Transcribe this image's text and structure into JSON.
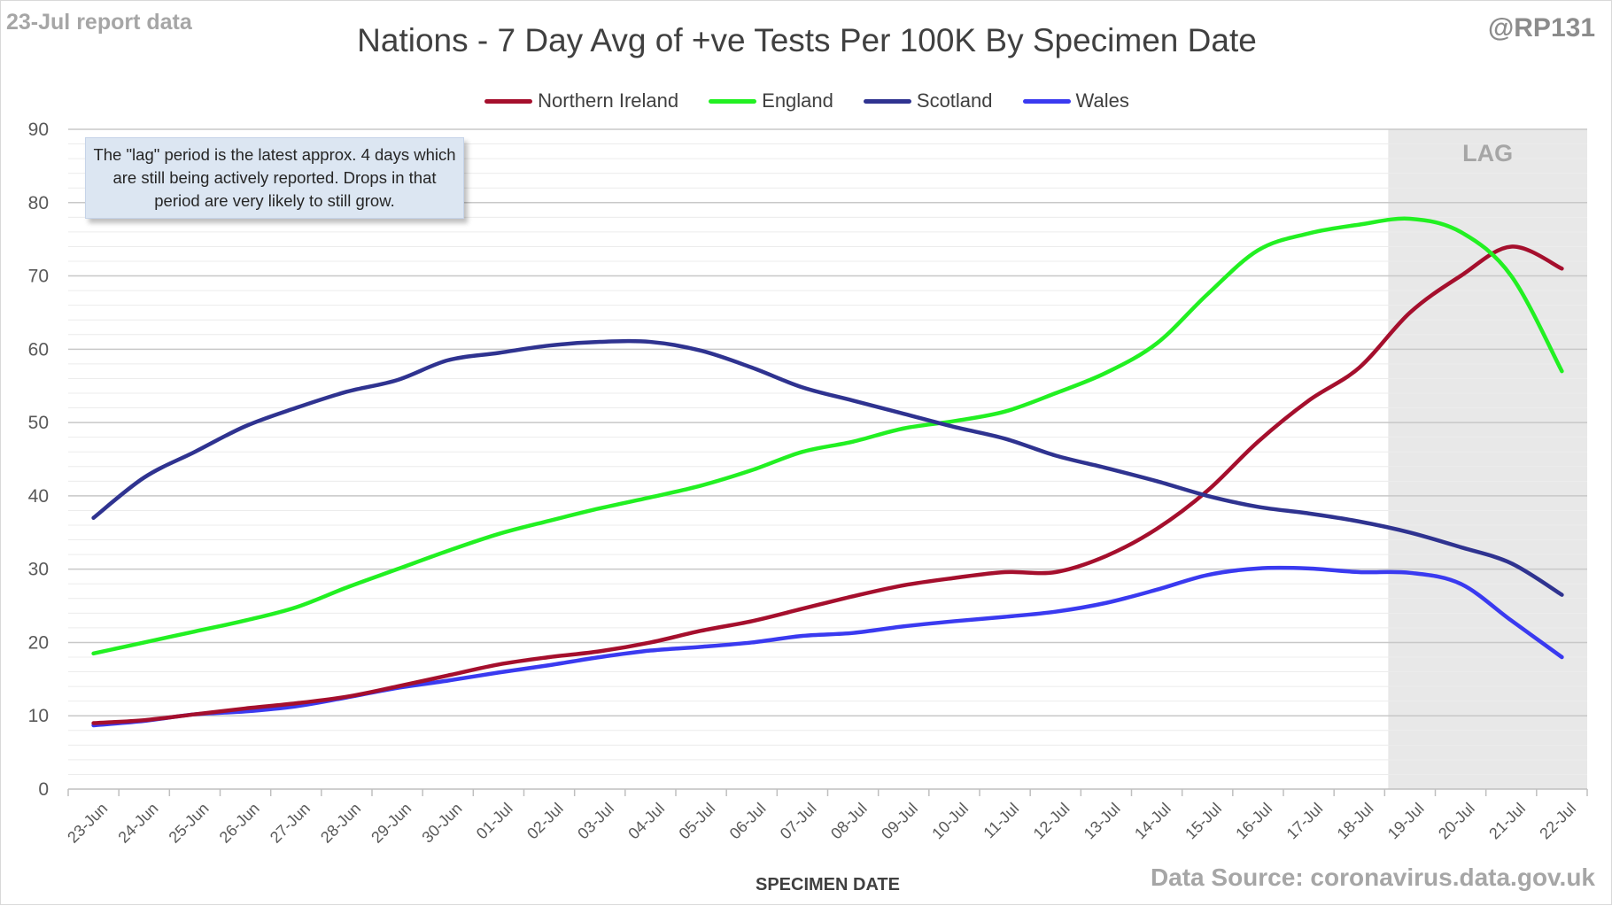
{
  "header": {
    "report_label": "23-Jul report data",
    "handle": "@RP131",
    "source": "Data Source: coronavirus.data.gov.uk"
  },
  "annotation": {
    "lag_label": "LAG",
    "note": "The \"lag\" period is the latest approx. 4 days which are still being actively reported.  Drops in that period are very likely to still grow."
  },
  "colors": {
    "northern_ireland": "#a50f2d",
    "england": "#22f022",
    "scotland": "#2f3390",
    "wales": "#3a3af0",
    "lag_shade": "#e8e8e8"
  },
  "chart_data": {
    "type": "line",
    "title": "Nations - 7 Day Avg of +ve Tests Per 100K By Specimen Date",
    "xlabel": "SPECIMEN DATE",
    "ylabel": "",
    "ylim": [
      0,
      90
    ],
    "yticks": [
      0,
      10,
      20,
      30,
      40,
      50,
      60,
      70,
      80,
      90
    ],
    "grid": true,
    "legend_position": "top",
    "lag_period": [
      "19-Jul",
      "22-Jul"
    ],
    "categories": [
      "23-Jun",
      "24-Jun",
      "25-Jun",
      "26-Jun",
      "27-Jun",
      "28-Jun",
      "29-Jun",
      "30-Jun",
      "01-Jul",
      "02-Jul",
      "03-Jul",
      "04-Jul",
      "05-Jul",
      "06-Jul",
      "07-Jul",
      "08-Jul",
      "09-Jul",
      "10-Jul",
      "11-Jul",
      "12-Jul",
      "13-Jul",
      "14-Jul",
      "15-Jul",
      "16-Jul",
      "17-Jul",
      "18-Jul",
      "19-Jul",
      "20-Jul",
      "21-Jul",
      "22-Jul"
    ],
    "series": [
      {
        "name": "Northern Ireland",
        "color": "#a50f2d",
        "values": [
          9.0,
          9.4,
          10.2,
          11.0,
          11.7,
          12.6,
          14.0,
          15.5,
          17.0,
          18.0,
          18.8,
          20.0,
          21.6,
          22.9,
          24.6,
          26.3,
          27.8,
          28.8,
          29.6,
          29.6,
          31.8,
          35.5,
          40.7,
          47.4,
          53.0,
          57.5,
          65.0,
          70.0,
          74.0,
          71.0
        ]
      },
      {
        "name": "England",
        "color": "#22f022",
        "values": [
          18.5,
          20.0,
          21.5,
          23.0,
          24.8,
          27.5,
          30.0,
          32.5,
          34.8,
          36.6,
          38.3,
          39.8,
          41.4,
          43.5,
          46.0,
          47.4,
          49.2,
          50.2,
          51.5,
          54.0,
          56.8,
          60.8,
          67.5,
          73.5,
          75.8,
          77.0,
          77.8,
          76.0,
          70.0,
          57.0
        ]
      },
      {
        "name": "Scotland",
        "color": "#2f3390",
        "values": [
          37.0,
          42.5,
          46.0,
          49.5,
          52.0,
          54.2,
          55.8,
          58.5,
          59.5,
          60.5,
          61.0,
          61.0,
          59.8,
          57.5,
          54.8,
          53.0,
          51.2,
          49.4,
          47.8,
          45.5,
          43.8,
          42.0,
          40.0,
          38.5,
          37.6,
          36.5,
          35.0,
          33.0,
          30.8,
          26.5
        ]
      },
      {
        "name": "Wales",
        "color": "#3a3af0",
        "values": [
          8.7,
          9.3,
          10.2,
          10.6,
          11.3,
          12.5,
          13.8,
          14.8,
          15.9,
          16.9,
          18.0,
          18.9,
          19.4,
          20.0,
          20.9,
          21.3,
          22.2,
          22.9,
          23.5,
          24.2,
          25.4,
          27.2,
          29.2,
          30.1,
          30.1,
          29.6,
          29.5,
          28.0,
          23.0,
          18.0
        ]
      }
    ]
  }
}
